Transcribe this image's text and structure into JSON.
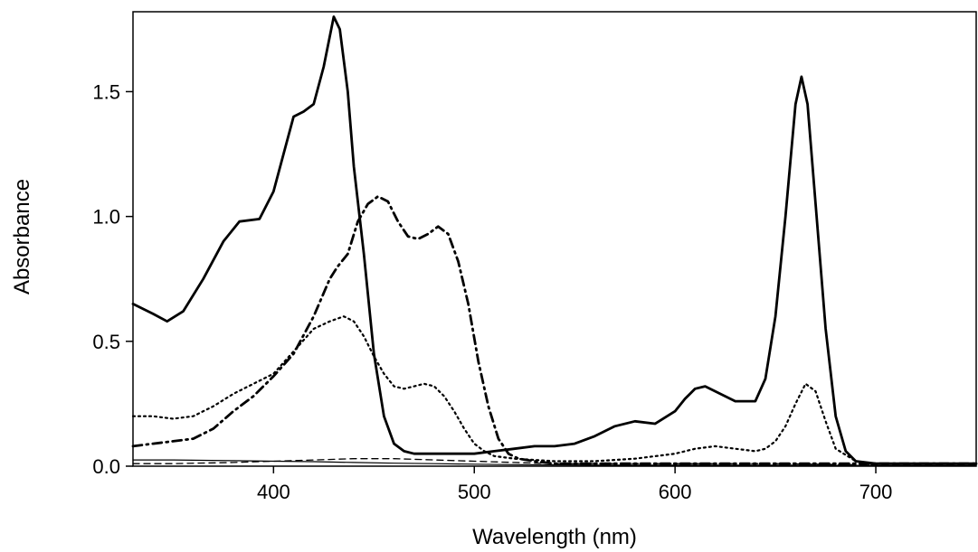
{
  "chart_data": {
    "type": "line",
    "xlabel": "Wavelength (nm)",
    "ylabel": "Absorbance",
    "xlim": [
      330,
      750
    ],
    "ylim": [
      0,
      1.82
    ],
    "x_ticks": [
      400,
      500,
      600,
      700
    ],
    "x_tick_labels": [
      "400",
      "500",
      "600",
      "700"
    ],
    "y_ticks": [
      0.0,
      0.5,
      1.0,
      1.5
    ],
    "y_tick_labels": [
      "0.0",
      "0.5",
      "1.0",
      "1.5"
    ],
    "grid": false,
    "legend": "none",
    "series": [
      {
        "style": "solid",
        "color": "#000000",
        "x": [
          330,
          340,
          347,
          355,
          365,
          375,
          383,
          393,
          400,
          405,
          410,
          415,
          420,
          425,
          430,
          433,
          437,
          440,
          445,
          450,
          455,
          460,
          465,
          470,
          480,
          500,
          510,
          520,
          530,
          540,
          550,
          560,
          570,
          580,
          590,
          600,
          605,
          610,
          615,
          620,
          625,
          630,
          640,
          645,
          650,
          655,
          660,
          663,
          666,
          670,
          675,
          680,
          685,
          690,
          700,
          710,
          720,
          750
        ],
        "y": [
          0.65,
          0.61,
          0.58,
          0.62,
          0.75,
          0.9,
          0.98,
          0.99,
          1.1,
          1.25,
          1.4,
          1.42,
          1.45,
          1.6,
          1.8,
          1.75,
          1.5,
          1.2,
          0.85,
          0.45,
          0.2,
          0.09,
          0.06,
          0.05,
          0.05,
          0.05,
          0.06,
          0.07,
          0.08,
          0.08,
          0.09,
          0.12,
          0.16,
          0.18,
          0.17,
          0.22,
          0.27,
          0.31,
          0.32,
          0.3,
          0.28,
          0.26,
          0.26,
          0.35,
          0.6,
          1.0,
          1.45,
          1.56,
          1.45,
          1.05,
          0.55,
          0.2,
          0.06,
          0.02,
          0.01,
          0.01,
          0.01,
          0.01
        ]
      },
      {
        "style": "dash-dot",
        "color": "#000000",
        "x": [
          330,
          340,
          350,
          360,
          370,
          380,
          390,
          400,
          410,
          420,
          428,
          432,
          437,
          442,
          447,
          452,
          457,
          462,
          467,
          472,
          477,
          482,
          487,
          492,
          497,
          502,
          507,
          512,
          517,
          522,
          530,
          540,
          560,
          580,
          600,
          650,
          700,
          750
        ],
        "y": [
          0.08,
          0.09,
          0.1,
          0.11,
          0.15,
          0.22,
          0.28,
          0.36,
          0.45,
          0.6,
          0.75,
          0.8,
          0.85,
          0.98,
          1.05,
          1.08,
          1.06,
          0.98,
          0.92,
          0.91,
          0.93,
          0.96,
          0.93,
          0.82,
          0.65,
          0.42,
          0.24,
          0.11,
          0.05,
          0.03,
          0.02,
          0.01,
          0.01,
          0.01,
          0.01,
          0.01,
          0.01,
          0.01
        ]
      },
      {
        "style": "dotted",
        "color": "#000000",
        "x": [
          330,
          340,
          350,
          360,
          370,
          380,
          390,
          400,
          410,
          420,
          428,
          435,
          440,
          445,
          450,
          455,
          460,
          465,
          470,
          475,
          480,
          485,
          490,
          495,
          500,
          505,
          510,
          520,
          540,
          560,
          580,
          600,
          610,
          620,
          630,
          640,
          645,
          650,
          655,
          660,
          665,
          670,
          675,
          680,
          690,
          700,
          720,
          750
        ],
        "y": [
          0.2,
          0.2,
          0.19,
          0.2,
          0.24,
          0.29,
          0.33,
          0.37,
          0.46,
          0.55,
          0.58,
          0.6,
          0.58,
          0.52,
          0.44,
          0.37,
          0.32,
          0.31,
          0.32,
          0.33,
          0.32,
          0.28,
          0.22,
          0.15,
          0.09,
          0.06,
          0.04,
          0.03,
          0.02,
          0.02,
          0.03,
          0.05,
          0.07,
          0.08,
          0.07,
          0.06,
          0.07,
          0.1,
          0.16,
          0.25,
          0.33,
          0.3,
          0.18,
          0.07,
          0.02,
          0.01,
          0.01,
          0.01
        ]
      },
      {
        "style": "dashed",
        "color": "#000000",
        "x": [
          330,
          350,
          380,
          400,
          420,
          440,
          460,
          480,
          500,
          520,
          540,
          560,
          600,
          650,
          700,
          750
        ],
        "y": [
          0.01,
          0.01,
          0.015,
          0.02,
          0.025,
          0.03,
          0.03,
          0.025,
          0.02,
          0.015,
          0.01,
          0.01,
          0.01,
          0.01,
          0.005,
          0.005
        ]
      },
      {
        "style": "thin-solid",
        "color": "#000000",
        "x": [
          330,
          350,
          380,
          400,
          420,
          440,
          460,
          480,
          500,
          520,
          540,
          560,
          600,
          650,
          700,
          750
        ],
        "y": [
          0.025,
          0.025,
          0.022,
          0.02,
          0.018,
          0.015,
          0.012,
          0.01,
          0.008,
          0.006,
          0.005,
          0.004,
          0.004,
          0.004,
          0.003,
          0.003
        ]
      }
    ]
  }
}
